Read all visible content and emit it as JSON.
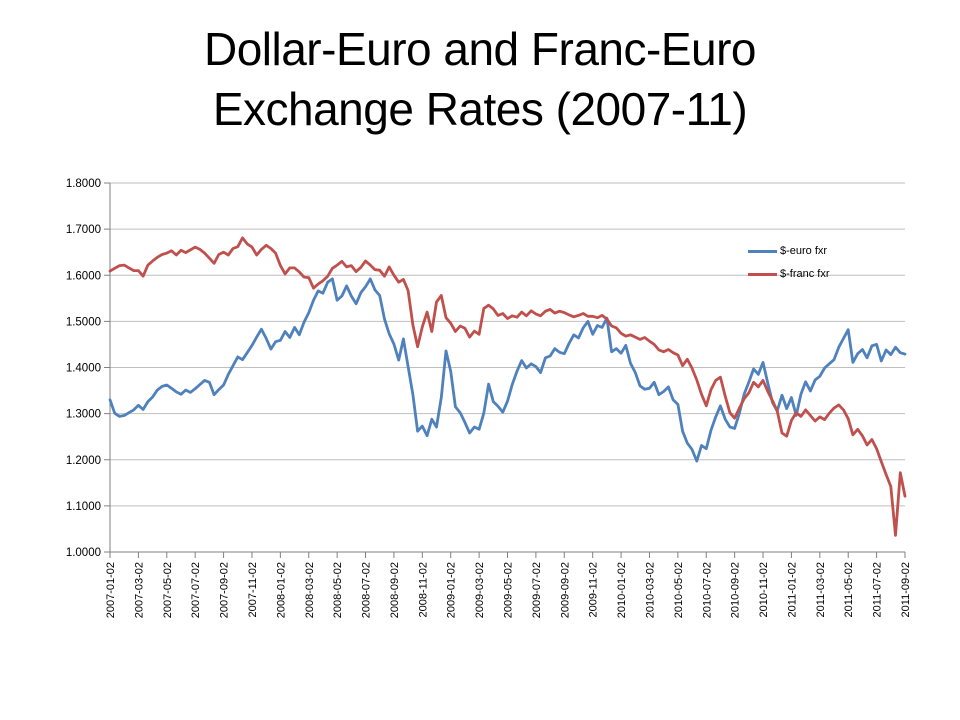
{
  "slide": {
    "title": "Dollar-Euro and Franc-Euro Exchange Rates (2007-11)"
  },
  "chart_data": {
    "type": "line",
    "title": "Dollar-Euro and Franc-Euro Exchange Rates (2007-11)",
    "ylim": [
      1.0,
      1.8
    ],
    "y_tick_labels": [
      "1.8000",
      "1.7000",
      "1.6000",
      "1.5000",
      "1.4000",
      "1.3000",
      "1.2000",
      "1.1000",
      "1.0000"
    ],
    "x_tick_labels": [
      "2007-01-02",
      "2007-03-02",
      "2007-05-02",
      "2007-07-02",
      "2007-09-02",
      "2007-11-02",
      "2008-01-02",
      "2008-03-02",
      "2008-05-02",
      "2008-07-02",
      "2008-09-02",
      "2008-11-02",
      "2009-01-02",
      "2009-03-02",
      "2009-05-02",
      "2009-07-02",
      "2009-09-02",
      "2009-11-02",
      "2010-01-02",
      "2010-03-02",
      "2010-05-02",
      "2010-07-02",
      "2010-09-02",
      "2010-11-02",
      "2011-01-02",
      "2011-03-02",
      "2011-05-02",
      "2011-07-02",
      "2011-09-02"
    ],
    "x_range": {
      "start": "2007-01-02",
      "end": "2011-09-02",
      "points_per_month": 3
    },
    "grid": true,
    "legend_position": "inside-right",
    "colors": {
      "gridline": "#BFBFBF",
      "axis": "#808080",
      "label": "#000000",
      "background": "#FFFFFF"
    },
    "series": [
      {
        "name": "$-euro fxr",
        "color": "#4F81BD",
        "values": [
          1.33,
          1.301,
          1.294,
          1.296,
          1.302,
          1.308,
          1.318,
          1.309,
          1.326,
          1.336,
          1.351,
          1.359,
          1.362,
          1.355,
          1.347,
          1.342,
          1.351,
          1.346,
          1.354,
          1.363,
          1.372,
          1.368,
          1.341,
          1.352,
          1.362,
          1.385,
          1.404,
          1.423,
          1.417,
          1.432,
          1.448,
          1.466,
          1.483,
          1.463,
          1.44,
          1.456,
          1.459,
          1.478,
          1.465,
          1.487,
          1.471,
          1.498,
          1.519,
          1.546,
          1.566,
          1.561,
          1.585,
          1.592,
          1.546,
          1.555,
          1.577,
          1.555,
          1.538,
          1.562,
          1.575,
          1.592,
          1.568,
          1.556,
          1.505,
          1.473,
          1.451,
          1.416,
          1.462,
          1.402,
          1.341,
          1.262,
          1.273,
          1.252,
          1.288,
          1.271,
          1.335,
          1.436,
          1.392,
          1.315,
          1.302,
          1.281,
          1.258,
          1.271,
          1.266,
          1.301,
          1.364,
          1.326,
          1.316,
          1.303,
          1.327,
          1.363,
          1.392,
          1.415,
          1.399,
          1.408,
          1.402,
          1.389,
          1.421,
          1.425,
          1.441,
          1.433,
          1.43,
          1.452,
          1.471,
          1.464,
          1.486,
          1.5,
          1.472,
          1.491,
          1.487,
          1.507,
          1.434,
          1.441,
          1.431,
          1.448,
          1.409,
          1.389,
          1.36,
          1.353,
          1.355,
          1.368,
          1.341,
          1.348,
          1.358,
          1.33,
          1.32,
          1.262,
          1.236,
          1.222,
          1.197,
          1.231,
          1.224,
          1.264,
          1.293,
          1.317,
          1.288,
          1.271,
          1.268,
          1.301,
          1.342,
          1.368,
          1.397,
          1.385,
          1.411,
          1.366,
          1.324,
          1.306,
          1.34,
          1.311,
          1.335,
          1.296,
          1.342,
          1.369,
          1.349,
          1.373,
          1.381,
          1.399,
          1.408,
          1.417,
          1.444,
          1.463,
          1.482,
          1.411,
          1.43,
          1.439,
          1.421,
          1.447,
          1.45,
          1.414,
          1.438,
          1.428,
          1.444,
          1.432,
          1.429
        ]
      },
      {
        "name": "$-franc fxr",
        "color": "#C0504D",
        "values": [
          1.609,
          1.615,
          1.621,
          1.622,
          1.616,
          1.61,
          1.61,
          1.598,
          1.622,
          1.631,
          1.639,
          1.645,
          1.648,
          1.653,
          1.644,
          1.654,
          1.649,
          1.655,
          1.661,
          1.656,
          1.648,
          1.637,
          1.626,
          1.645,
          1.65,
          1.644,
          1.658,
          1.662,
          1.681,
          1.668,
          1.661,
          1.644,
          1.656,
          1.665,
          1.658,
          1.648,
          1.621,
          1.603,
          1.616,
          1.616,
          1.607,
          1.596,
          1.595,
          1.572,
          1.581,
          1.588,
          1.598,
          1.615,
          1.622,
          1.63,
          1.618,
          1.621,
          1.608,
          1.617,
          1.631,
          1.622,
          1.612,
          1.611,
          1.598,
          1.618,
          1.6,
          1.585,
          1.591,
          1.567,
          1.492,
          1.445,
          1.488,
          1.52,
          1.478,
          1.542,
          1.556,
          1.508,
          1.496,
          1.478,
          1.49,
          1.485,
          1.466,
          1.479,
          1.472,
          1.528,
          1.535,
          1.527,
          1.513,
          1.517,
          1.506,
          1.512,
          1.509,
          1.52,
          1.512,
          1.523,
          1.516,
          1.512,
          1.522,
          1.526,
          1.518,
          1.522,
          1.519,
          1.514,
          1.51,
          1.513,
          1.517,
          1.511,
          1.511,
          1.508,
          1.513,
          1.505,
          1.49,
          1.486,
          1.474,
          1.468,
          1.471,
          1.466,
          1.461,
          1.465,
          1.457,
          1.45,
          1.438,
          1.434,
          1.439,
          1.432,
          1.427,
          1.404,
          1.418,
          1.398,
          1.373,
          1.342,
          1.317,
          1.352,
          1.372,
          1.379,
          1.338,
          1.302,
          1.29,
          1.312,
          1.332,
          1.345,
          1.368,
          1.358,
          1.372,
          1.348,
          1.328,
          1.306,
          1.258,
          1.251,
          1.285,
          1.302,
          1.294,
          1.308,
          1.296,
          1.284,
          1.293,
          1.287,
          1.301,
          1.312,
          1.319,
          1.308,
          1.289,
          1.254,
          1.266,
          1.252,
          1.232,
          1.244,
          1.224,
          1.196,
          1.168,
          1.142,
          1.036,
          1.172,
          1.121
        ]
      }
    ]
  }
}
